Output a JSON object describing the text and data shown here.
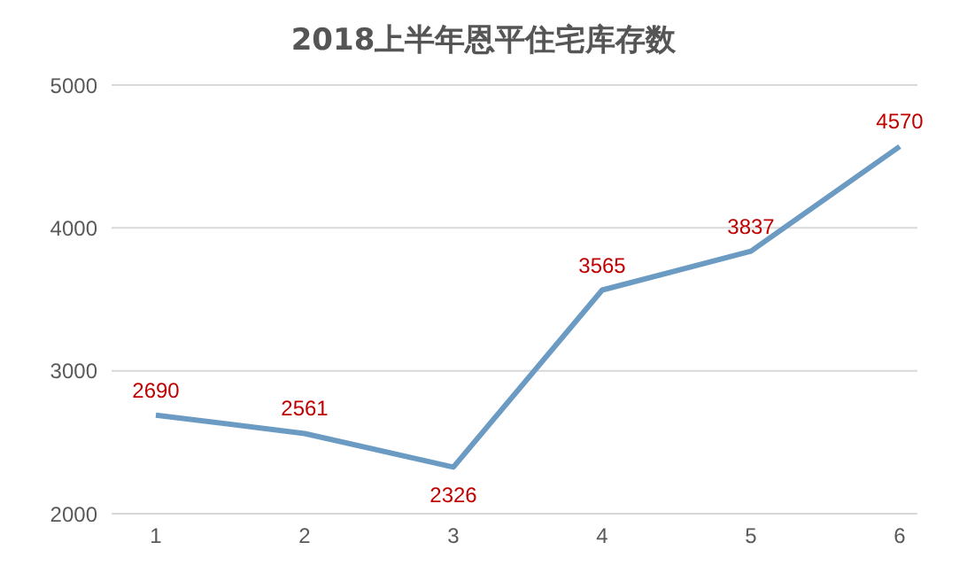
{
  "chart_data": {
    "type": "line",
    "title": "2018上半年恩平住宅库存数",
    "categories": [
      "1",
      "2",
      "3",
      "4",
      "5",
      "6"
    ],
    "series": [
      {
        "color": "#6b9bc3",
        "values": [
          2690,
          2561,
          2326,
          3565,
          3837,
          4570
        ]
      }
    ],
    "ylim": [
      2000,
      5000
    ],
    "yticks": [
      2000,
      3000,
      4000,
      5000
    ],
    "grid": "y",
    "marker": "none",
    "line_style": "solid",
    "data_labels": true
  }
}
